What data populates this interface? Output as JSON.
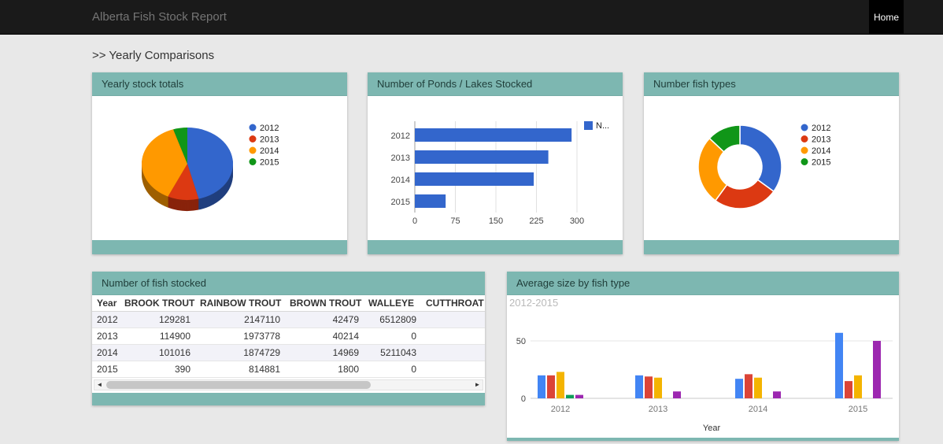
{
  "navbar": {
    "title": "Alberta Fish Stock Report",
    "home_label": "Home"
  },
  "page": {
    "heading": ">> Yearly Comparisons"
  },
  "panels": {
    "pie": {
      "title": "Yearly stock totals"
    },
    "hbar": {
      "title": "Number of Ponds / Lakes Stocked"
    },
    "donut": {
      "title": "Number fish types"
    },
    "table": {
      "title": "Number of fish stocked"
    },
    "grouped": {
      "title": "Average size by fish type"
    }
  },
  "colors": {
    "panel_header": "#7db7b1",
    "navbar_bg": "#1a1a1a",
    "year_2012": "#3366cc",
    "year_2013": "#dc3912",
    "year_2014": "#ff9900",
    "year_2015": "#109618"
  },
  "table": {
    "columns": [
      "Year",
      "BROOK TROUT",
      "RAINBOW TROUT",
      "BROWN TROUT",
      "WALLEYE",
      "CUTTHROAT"
    ],
    "rows": [
      [
        "2012",
        "129281",
        "2147110",
        "42479",
        "6512809",
        ""
      ],
      [
        "2013",
        "114900",
        "1973778",
        "40214",
        "0",
        ""
      ],
      [
        "2014",
        "101016",
        "1874729",
        "14969",
        "5211043",
        ""
      ],
      [
        "2015",
        "390",
        "814881",
        "1800",
        "0",
        ""
      ]
    ]
  },
  "chart_data": [
    {
      "type": "pie",
      "style": "3d",
      "title": "Yearly stock totals",
      "legend_position": "right",
      "labels": [
        "2012",
        "2013",
        "2014",
        "2015"
      ],
      "values": [
        46,
        11,
        38,
        5
      ],
      "unit": "percent",
      "colors": [
        "#3366cc",
        "#dc3912",
        "#ff9900",
        "#109618"
      ]
    },
    {
      "type": "bar",
      "orientation": "horizontal",
      "title": "Number of Ponds / Lakes Stocked",
      "categories": [
        "2012",
        "2013",
        "2014",
        "2015"
      ],
      "values": [
        290,
        247,
        220,
        57
      ],
      "xlim": [
        0,
        300
      ],
      "xticks": [
        0,
        75,
        150,
        225,
        300
      ],
      "legend": [
        "N..."
      ],
      "legend_position": "right",
      "color": "#3366cc"
    },
    {
      "type": "pie",
      "subtype": "donut",
      "title": "Number fish types",
      "legend_position": "right",
      "labels": [
        "2012",
        "2013",
        "2014",
        "2015"
      ],
      "values": [
        35,
        25,
        27,
        13
      ],
      "unit": "percent",
      "colors": [
        "#3366cc",
        "#dc3912",
        "#ff9900",
        "#109618"
      ]
    },
    {
      "type": "bar",
      "title": "Average size by fish type",
      "subtitle": "2012-2015",
      "xlabel": "Year",
      "ylim": [
        0,
        60
      ],
      "yticks": [
        0,
        50
      ],
      "grid": true,
      "categories": [
        "2012",
        "2013",
        "2014",
        "2015"
      ],
      "series": [
        {
          "name": "series-blue",
          "color": "#4285f4",
          "values": [
            20,
            20,
            17,
            57
          ]
        },
        {
          "name": "series-red",
          "color": "#db4437",
          "values": [
            20,
            19,
            21,
            15
          ]
        },
        {
          "name": "series-orange",
          "color": "#f4b400",
          "values": [
            23,
            18,
            18,
            20
          ]
        },
        {
          "name": "series-green",
          "color": "#0f9d58",
          "values": [
            3,
            0,
            0,
            0
          ]
        },
        {
          "name": "series-purple",
          "color": "#9c27b0",
          "values": [
            3,
            6,
            6,
            50
          ]
        }
      ]
    }
  ]
}
